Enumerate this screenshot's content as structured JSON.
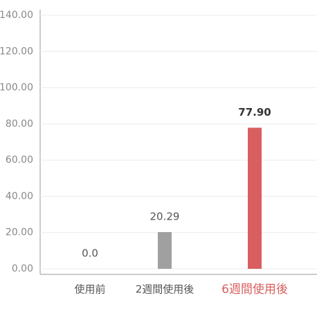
{
  "chart_data": {
    "type": "bar",
    "categories": [
      "使用前",
      "2週間使用後",
      "6週間使用後"
    ],
    "values": [
      0,
      20.29,
      77.9
    ],
    "value_labels": [
      "0.0",
      "20.29",
      "77.90"
    ],
    "colors": [
      "#c8c8c8",
      "#a0a0a0",
      "#d95f5f"
    ],
    "highlight": 2,
    "ylim": [
      0,
      140
    ],
    "yticks": [
      {
        "value": 0,
        "label": "0.00"
      },
      {
        "value": 20,
        "label": "20.00"
      },
      {
        "value": 40,
        "label": "40.00"
      },
      {
        "value": 60,
        "label": "60.00"
      },
      {
        "value": 80,
        "label": "80.00"
      },
      {
        "value": 100,
        "label": "100.00"
      },
      {
        "value": 120,
        "label": "120.00"
      },
      {
        "value": 140,
        "label": "140.00"
      }
    ],
    "grid": true
  }
}
